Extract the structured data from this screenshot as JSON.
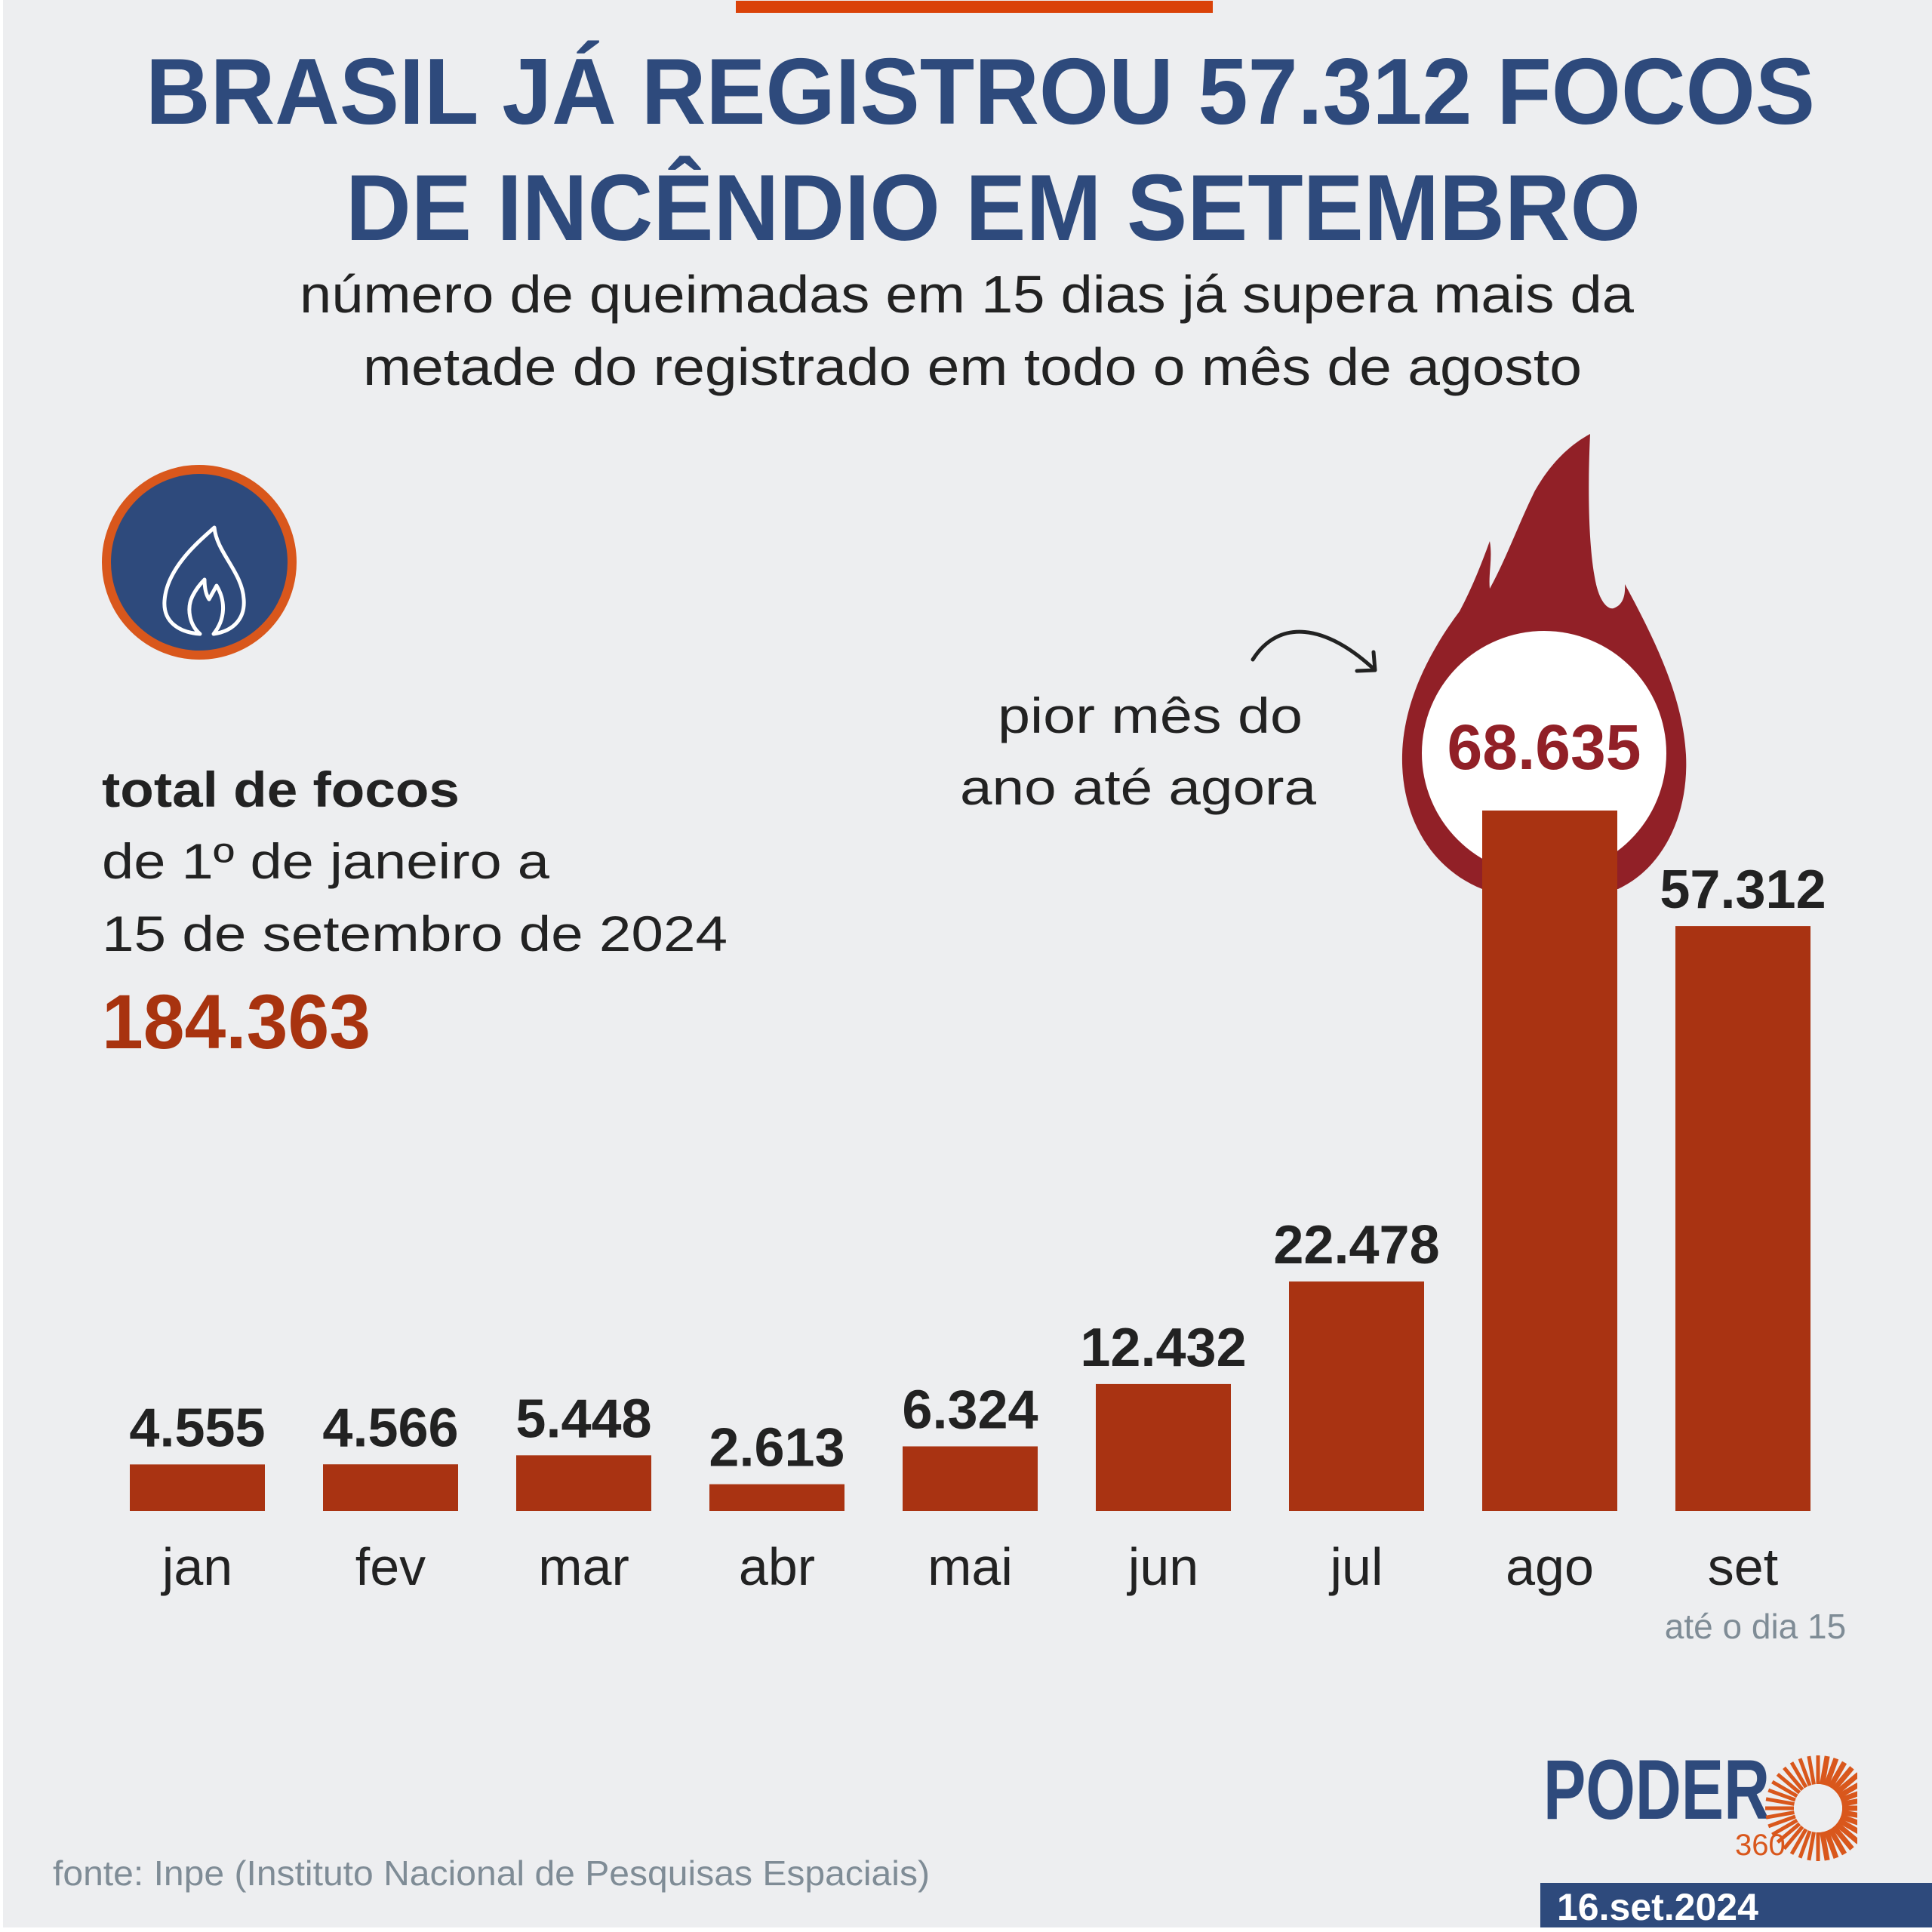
{
  "colors": {
    "background": "#edeef0",
    "title": "#2e4a7c",
    "accent_top_bar": "#da4209",
    "bar": "#a93312",
    "flame": "#912027",
    "total": "#a8330f",
    "muted": "#7f8c96",
    "badge_ring": "#d9571c"
  },
  "header": {
    "title_lines": [
      "BRASIL JÁ REGISTROU 57.312 FOCOS",
      "DE INCÊNDIO EM SETEMBRO"
    ],
    "subtitle_lines": [
      "número de queimadas em 15 dias já supera mais da",
      "metade do registrado em todo o mês de agosto"
    ]
  },
  "badge": {
    "icon": "flame-icon"
  },
  "summary": {
    "heading": "total de focos",
    "period_lines": [
      "de 1º de janeiro a",
      "15 de setembro de 2024"
    ],
    "total": "184.363"
  },
  "annotation": {
    "lines": [
      "pior mês do",
      "ano até agora"
    ],
    "icon": "curved-arrow-icon"
  },
  "chart_data": {
    "type": "bar",
    "title": "BRASIL JÁ REGISTROU 57.312 FOCOS DE INCÊNDIO EM SETEMBRO",
    "xlabel": "",
    "ylabel": "",
    "categories": [
      "jan",
      "fev",
      "mar",
      "abr",
      "mai",
      "jun",
      "jul",
      "ago",
      "set"
    ],
    "values": [
      4555,
      4566,
      5448,
      2613,
      6324,
      12432,
      22478,
      68635,
      57312
    ],
    "value_labels": [
      "4.555",
      "4.566",
      "5.448",
      "2.613",
      "6.324",
      "12.432",
      "22.478",
      "68.635",
      "57.312"
    ],
    "ylim": [
      0,
      68635
    ],
    "grid": false,
    "legend": "none",
    "highlight": {
      "category": "ago",
      "style": "flame"
    },
    "category_notes": {
      "set": "até o dia 15"
    }
  },
  "footer": {
    "source": "fonte: Inpe (Instituto Nacional de Pesquisas Espaciais)",
    "logo": {
      "word": "PODER",
      "number": "360"
    },
    "date": "16.set.2024"
  }
}
